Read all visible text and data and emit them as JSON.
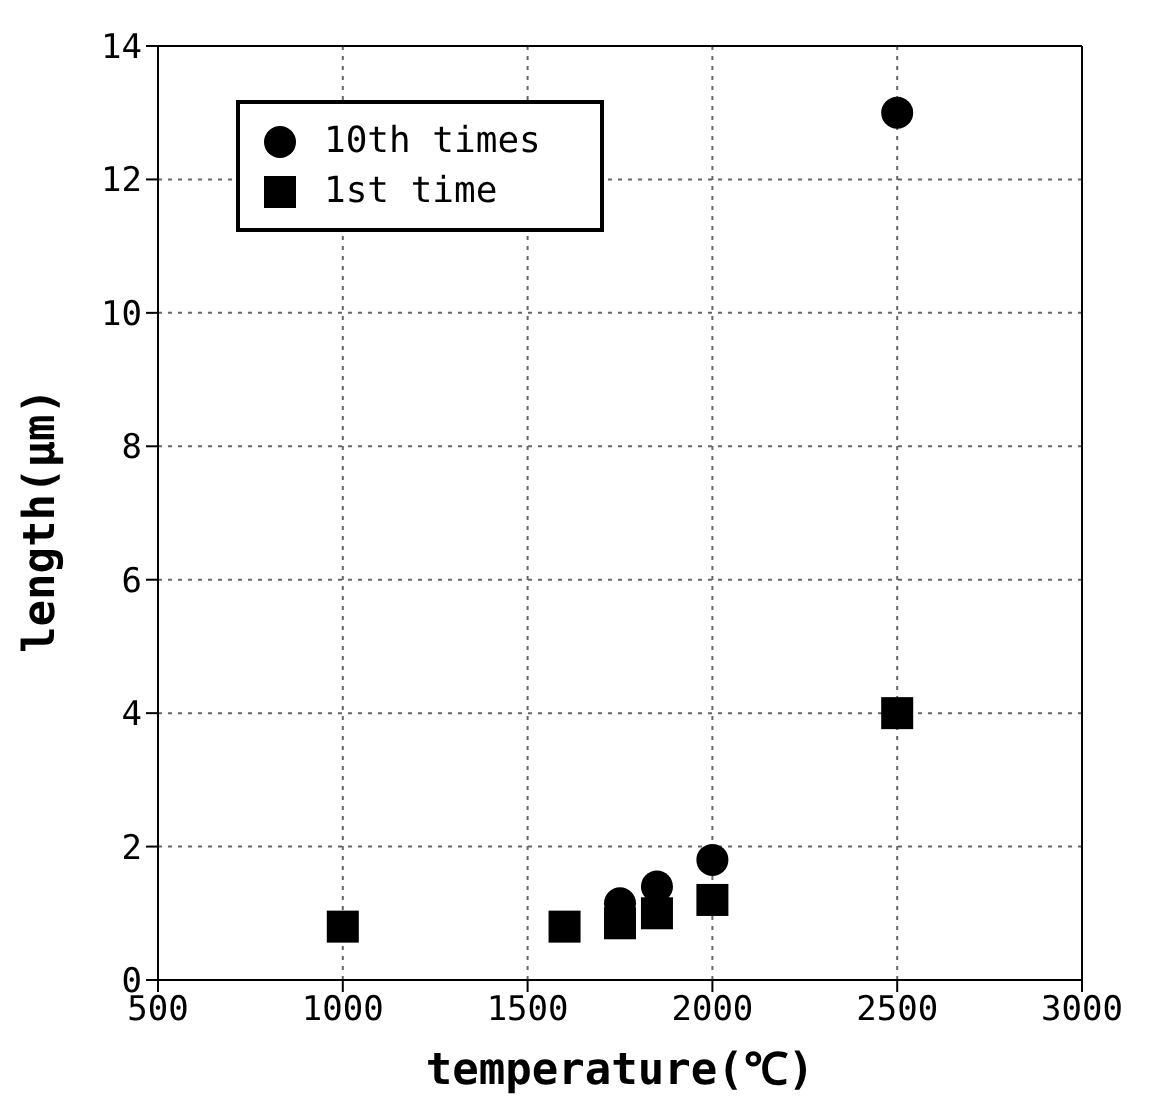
{
  "chart_data": {
    "type": "scatter",
    "xlabel": "temperature(℃)",
    "ylabel": "length(μm)",
    "xlim": [
      500,
      3000
    ],
    "xticks": [
      500,
      1000,
      1500,
      2000,
      2500,
      3000
    ],
    "ylim": [
      0,
      14
    ],
    "yticks": [
      0,
      2,
      4,
      6,
      8,
      10,
      12,
      14
    ],
    "grid": true,
    "legend": "top left",
    "series": [
      {
        "name": "10th times",
        "color": "#000000",
        "marker": "circle",
        "x": [
          1750,
          1850,
          2000,
          2500
        ],
        "values": [
          1.15,
          1.4,
          1.8,
          13.0
        ]
      },
      {
        "name": "1st time",
        "color": "#000000",
        "marker": "square",
        "x": [
          1000,
          1600,
          1750,
          1850,
          2000,
          2500
        ],
        "values": [
          0.8,
          0.8,
          0.85,
          1.0,
          1.2,
          4.0
        ]
      }
    ]
  }
}
